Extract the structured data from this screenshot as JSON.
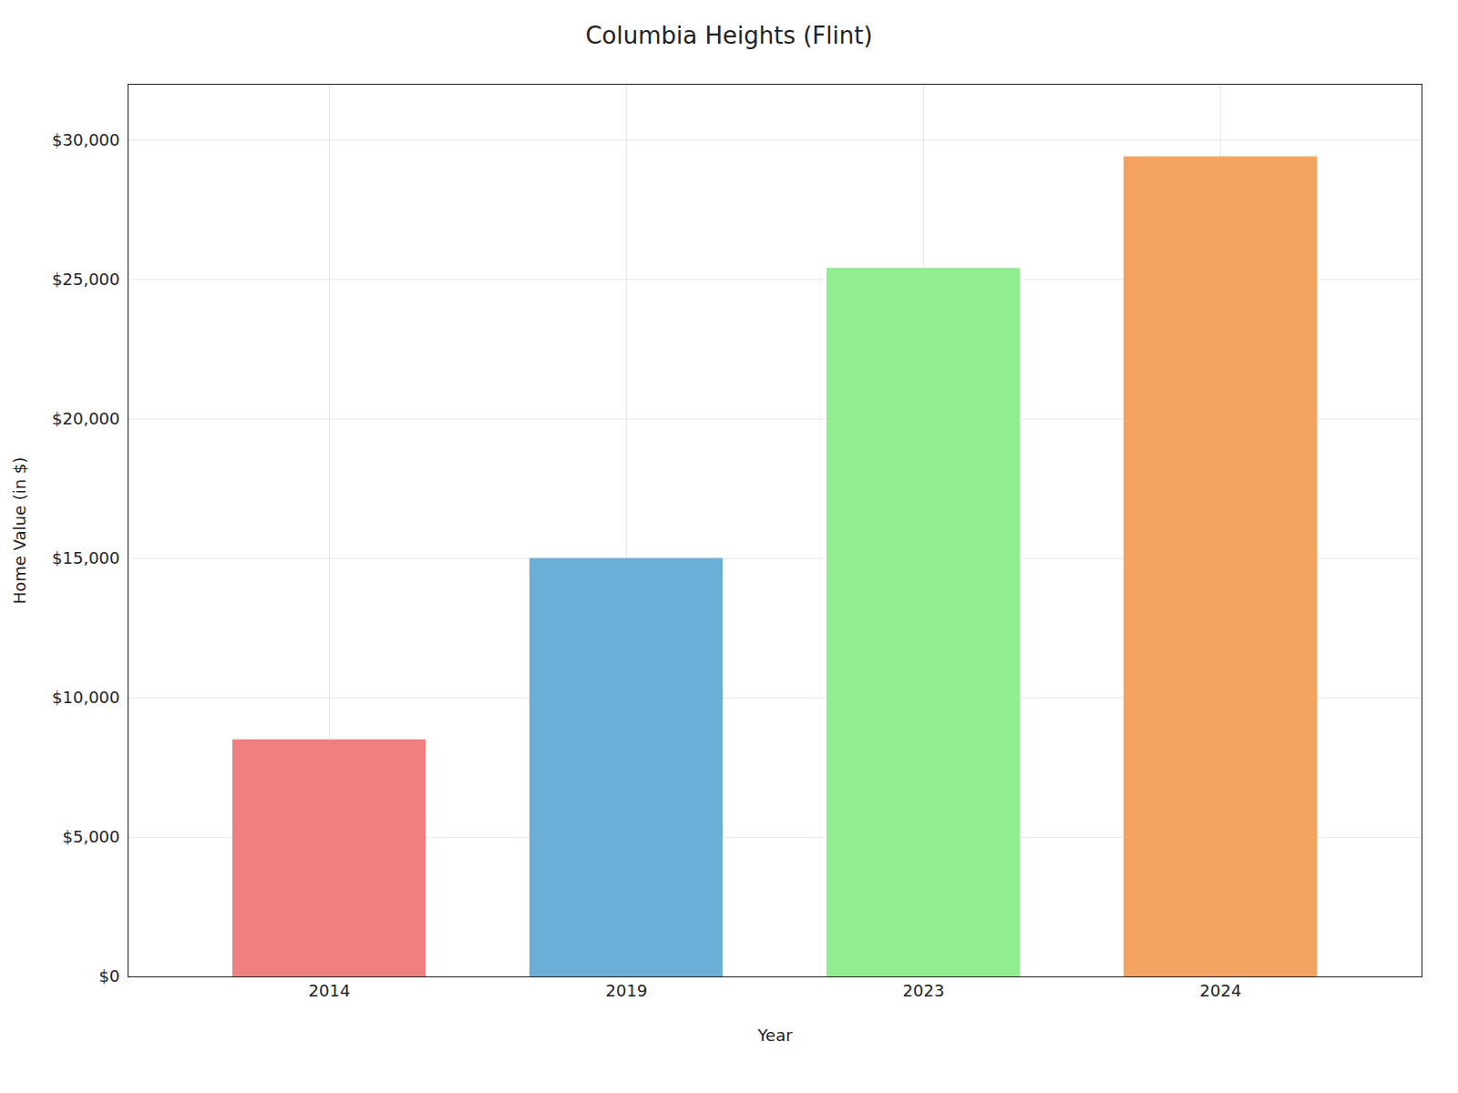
{
  "chart_data": {
    "type": "bar",
    "title": "Columbia Heights (Flint)",
    "xlabel": "Year",
    "ylabel": "Home Value (in $)",
    "categories": [
      "2014",
      "2019",
      "2023",
      "2024"
    ],
    "values": [
      8500,
      15000,
      25400,
      29400
    ],
    "colors": [
      "#F08080",
      "#6BAED6",
      "#90EE90",
      "#F4A460"
    ],
    "ylim": [
      0,
      32000
    ],
    "yticks": [
      {
        "value": 0,
        "label": "$0"
      },
      {
        "value": 5000,
        "label": "$5,000"
      },
      {
        "value": 10000,
        "label": "$10,000"
      },
      {
        "value": 15000,
        "label": "$15,000"
      },
      {
        "value": 20000,
        "label": "$20,000"
      },
      {
        "value": 25000,
        "label": "$25,000"
      },
      {
        "value": 30000,
        "label": "$30,000"
      }
    ],
    "grid": true
  }
}
